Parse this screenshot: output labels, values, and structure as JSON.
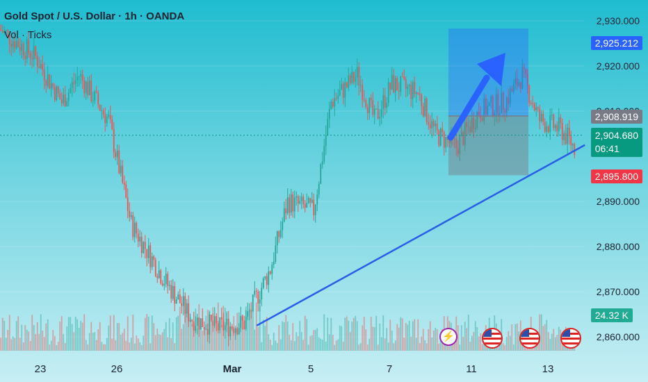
{
  "header": {
    "title": "Gold Spot / U.S. Dollar · 1h · OANDA",
    "subtitle": "Vol · Ticks"
  },
  "axis": {
    "price_ticks": [
      2930,
      2920,
      2910,
      2890,
      2880,
      2870,
      2860
    ],
    "price_tick_labels": [
      "2,930.000",
      "2,920.000",
      "2,910.000",
      "2,890.000",
      "2,880.000",
      "2,870.000",
      "2,860.000"
    ],
    "date_labels": [
      "23",
      "26",
      "Mar",
      "5",
      "7",
      "11",
      "13"
    ]
  },
  "tags": {
    "target": "2,925.212",
    "entry": "2,908.919",
    "current_price": "2,904.680",
    "countdown": "06:41",
    "stop": "2,895.800",
    "volume": "24.32 K"
  },
  "colors": {
    "up": "#26a69a",
    "down": "#ef5350",
    "trend": "#2a5de6",
    "target_tag": "#2962ff",
    "stop_tag": "#f23645",
    "entry_tag": "#787b86",
    "current_tag": "#089981",
    "volume_tag": "#22ab94"
  },
  "chart_data": {
    "type": "candlestick",
    "instrument": "Gold Spot / U.S. Dollar",
    "interval": "1h",
    "y_range": [
      2857,
      2933
    ],
    "key_path": [
      {
        "idx": 0,
        "price": 2928
      },
      {
        "idx": 20,
        "price": 2922
      },
      {
        "idx": 35,
        "price": 2912
      },
      {
        "idx": 45,
        "price": 2918
      },
      {
        "idx": 62,
        "price": 2908
      },
      {
        "idx": 75,
        "price": 2885
      },
      {
        "idx": 95,
        "price": 2872
      },
      {
        "idx": 110,
        "price": 2864
      },
      {
        "idx": 125,
        "price": 2862
      },
      {
        "idx": 140,
        "price": 2863
      },
      {
        "idx": 155,
        "price": 2875
      },
      {
        "idx": 165,
        "price": 2890
      },
      {
        "idx": 180,
        "price": 2888
      },
      {
        "idx": 190,
        "price": 2912
      },
      {
        "idx": 205,
        "price": 2918
      },
      {
        "idx": 215,
        "price": 2908
      },
      {
        "idx": 225,
        "price": 2916
      },
      {
        "idx": 240,
        "price": 2914
      },
      {
        "idx": 250,
        "price": 2905
      },
      {
        "idx": 262,
        "price": 2902
      },
      {
        "idx": 275,
        "price": 2910
      },
      {
        "idx": 290,
        "price": 2912
      },
      {
        "idx": 300,
        "price": 2918
      },
      {
        "idx": 310,
        "price": 2908
      },
      {
        "idx": 322,
        "price": 2906
      },
      {
        "idx": 330,
        "price": 2902
      },
      {
        "idx": 336,
        "price": 2904.68
      }
    ],
    "trendline": {
      "start": {
        "idx": 144,
        "price": 2862.5
      },
      "end": {
        "idx": 336,
        "price": 2902.5
      }
    },
    "position": {
      "entry": 2908.919,
      "target": 2925.212,
      "stop": 2895.8
    },
    "last_price": 2904.68,
    "last_volume": "24.32 K"
  }
}
